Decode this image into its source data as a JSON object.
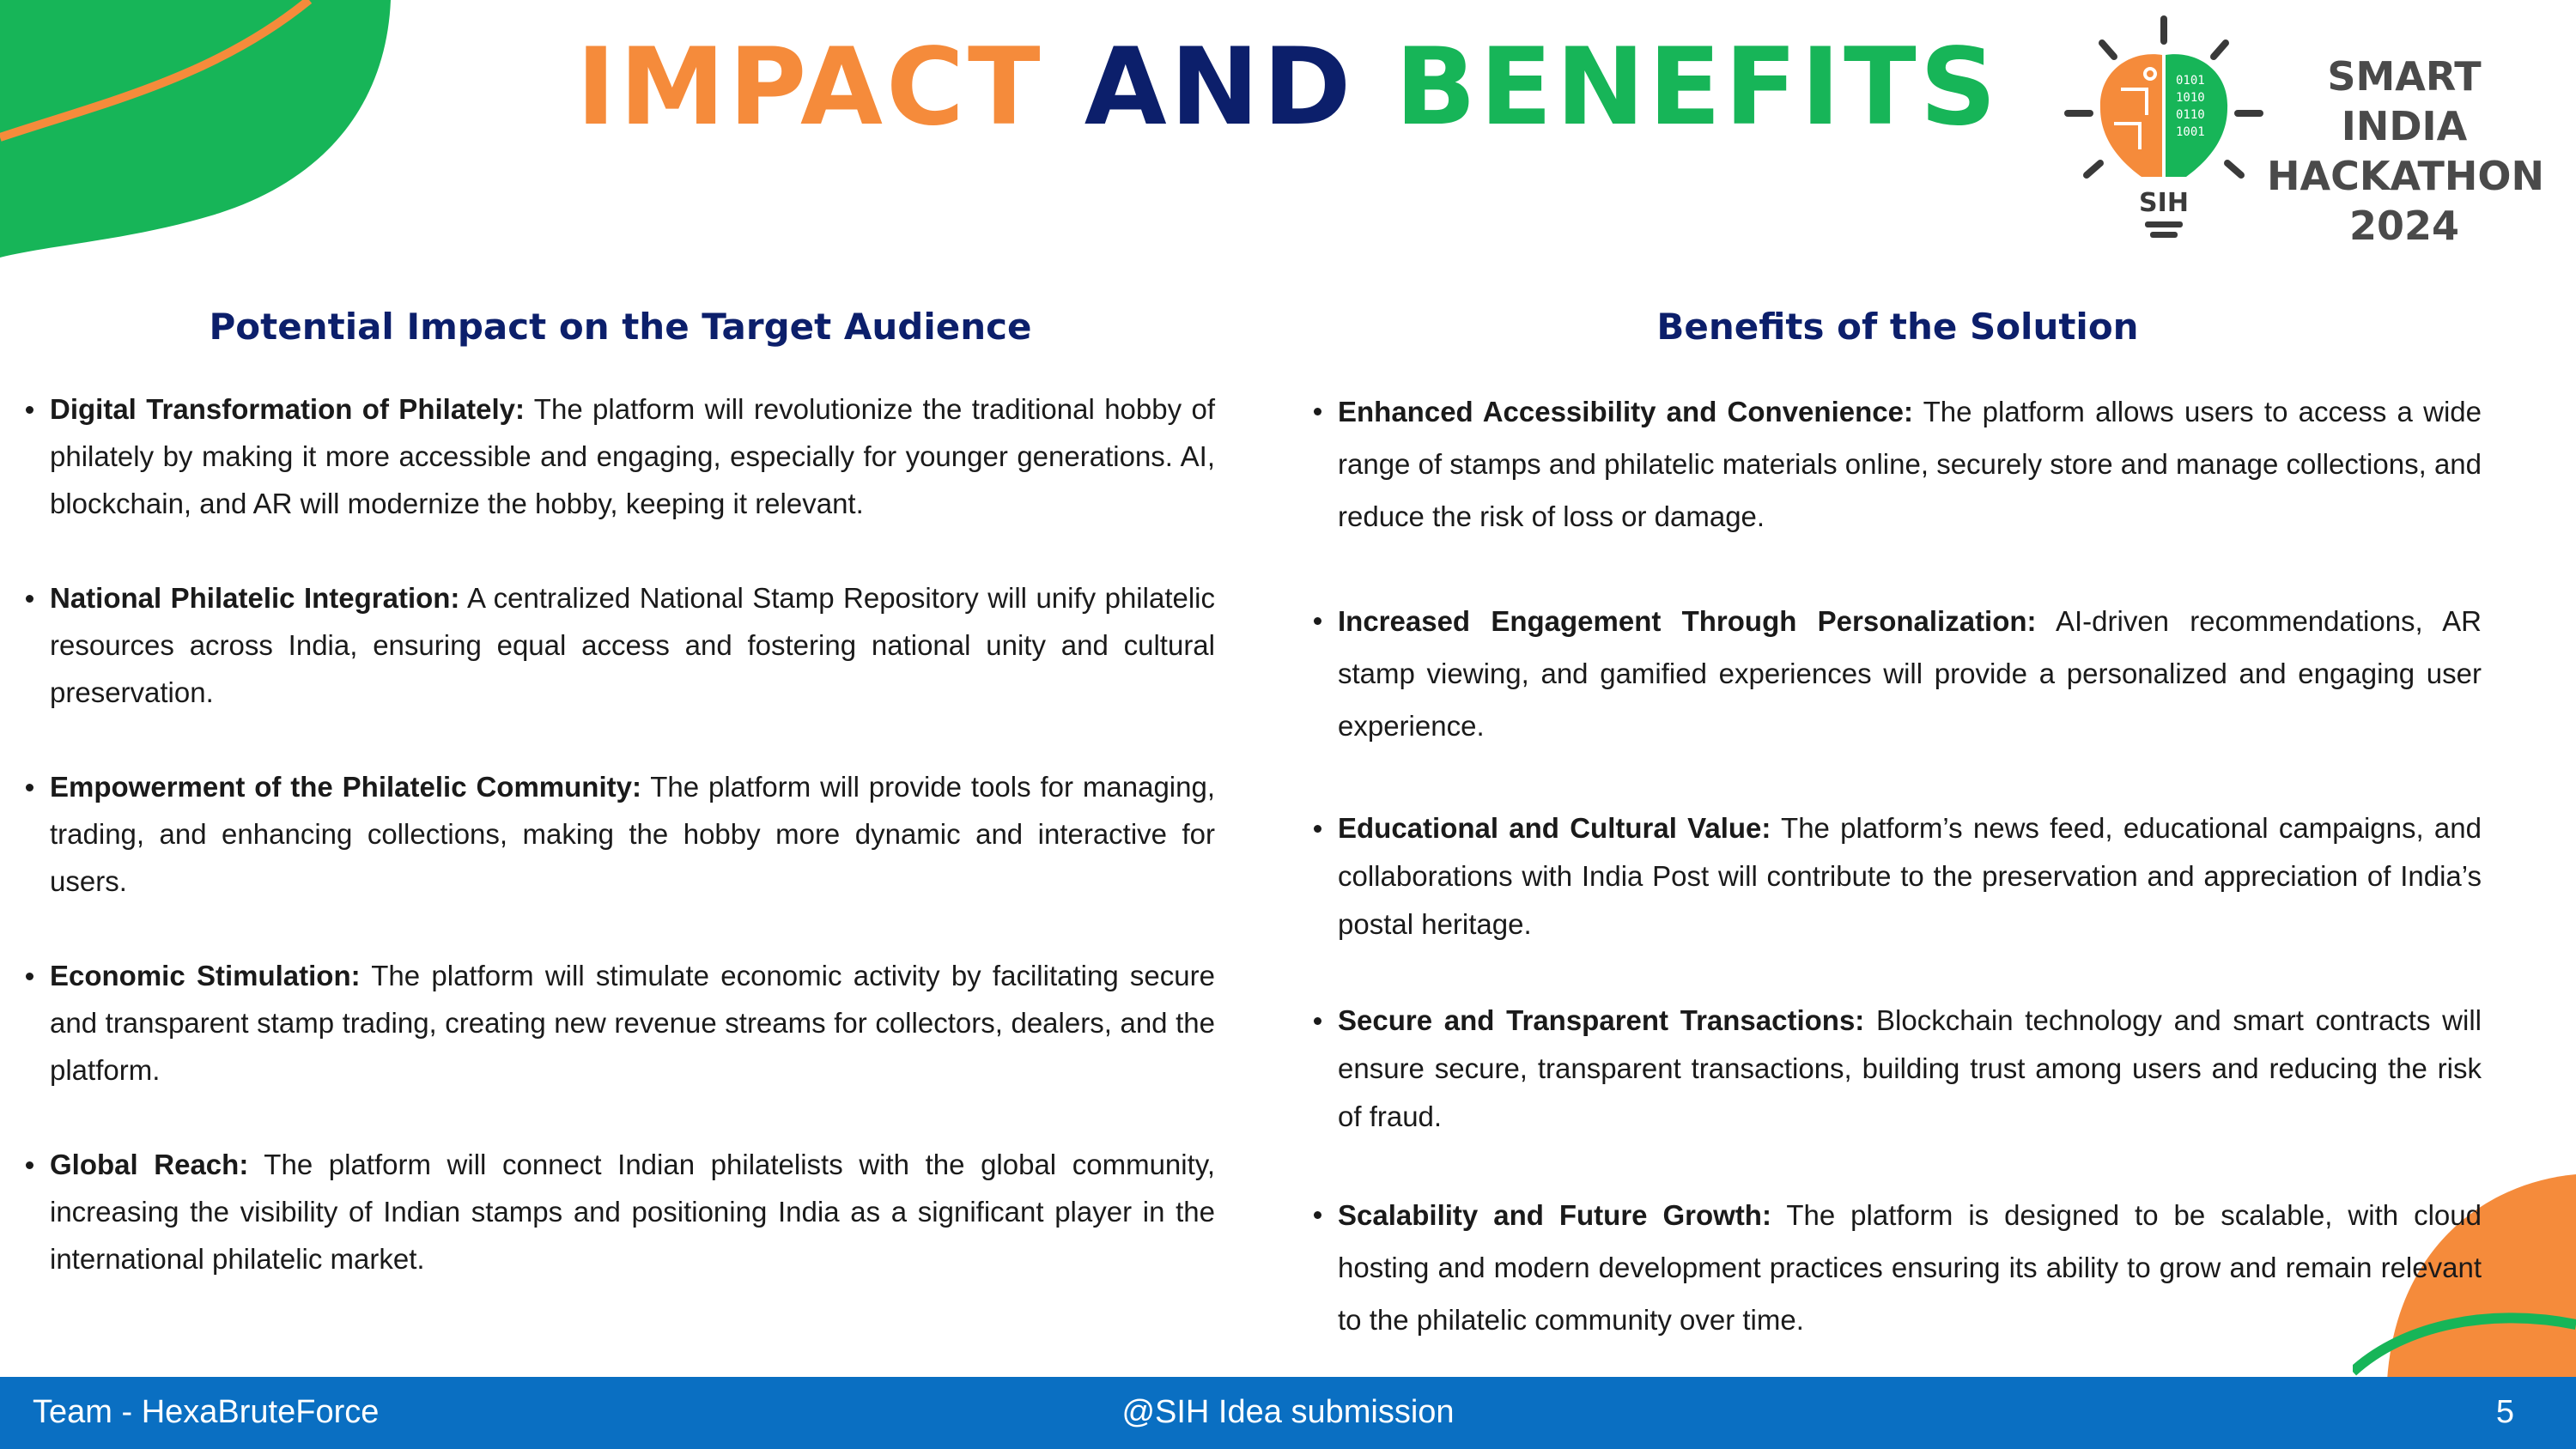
{
  "title": {
    "part1": "IMPACT",
    "part2": "AND",
    "part3": "BENEFITS"
  },
  "logo": {
    "line1": "SMART INDIA",
    "line2": "HACKATHON",
    "line3": "2024",
    "badge": "SIH"
  },
  "left": {
    "heading": "Potential Impact on the Target Audience",
    "items": [
      {
        "title": "Digital Transformation of Philately:",
        "text": " The platform will revolutionize the traditional hobby of philately by making it more accessible and engaging, especially for younger generations. AI, blockchain, and AR will modernize the hobby, keeping it relevant."
      },
      {
        "title": "National Philatelic Integration:",
        "text": " A centralized National Stamp Repository will unify philatelic resources across India, ensuring equal access and fostering national unity and cultural preservation."
      },
      {
        "title": "Empowerment of the Philatelic Community:",
        "text": " The platform will provide tools for managing, trading, and enhancing collections, making the hobby more dynamic and interactive for users."
      },
      {
        "title": "Economic Stimulation:",
        "text": " The platform will stimulate economic activity by facilitating secure and transparent stamp trading, creating new revenue streams for collectors, dealers, and the platform."
      },
      {
        "title": "Global Reach:",
        "text": " The platform will connect Indian philatelists with the global community, increasing the visibility of Indian stamps and positioning India as a significant player in the international philatelic market."
      }
    ]
  },
  "right": {
    "heading": "Benefits of the Solution",
    "items": [
      {
        "title": "Enhanced Accessibility and Convenience:",
        "text": " The platform allows users to access a wide range of stamps and philatelic materials online, securely store and manage collections, and reduce the risk of loss or damage."
      },
      {
        "title": "Increased Engagement Through Personalization:",
        "text": " AI-driven recommendations, AR stamp viewing, and gamified experiences will provide a personalized and engaging user experience."
      },
      {
        "title": "Educational and Cultural Value:",
        "text": " The platform’s news feed, educational campaigns, and collaborations with India Post will contribute to the preservation and appreciation of India’s postal heritage."
      },
      {
        "title": "Secure and Transparent Transactions:",
        "text": " Blockchain technology and smart contracts will ensure secure, transparent transactions, building trust among users and reducing the risk of fraud."
      },
      {
        "title": "Scalability and Future Growth:",
        "text": " The platform is designed to be scalable, with cloud hosting and modern development practices ensuring its ability to grow and remain relevant to the philatelic community over time."
      }
    ]
  },
  "footer": {
    "team": "Team - HexaBruteForce",
    "center": "@SIH Idea submission",
    "page": "5"
  },
  "colors": {
    "orange": "#f58b3b",
    "navy": "#0c1f6b",
    "green": "#17b558",
    "footer_blue": "#0a6fc2"
  }
}
